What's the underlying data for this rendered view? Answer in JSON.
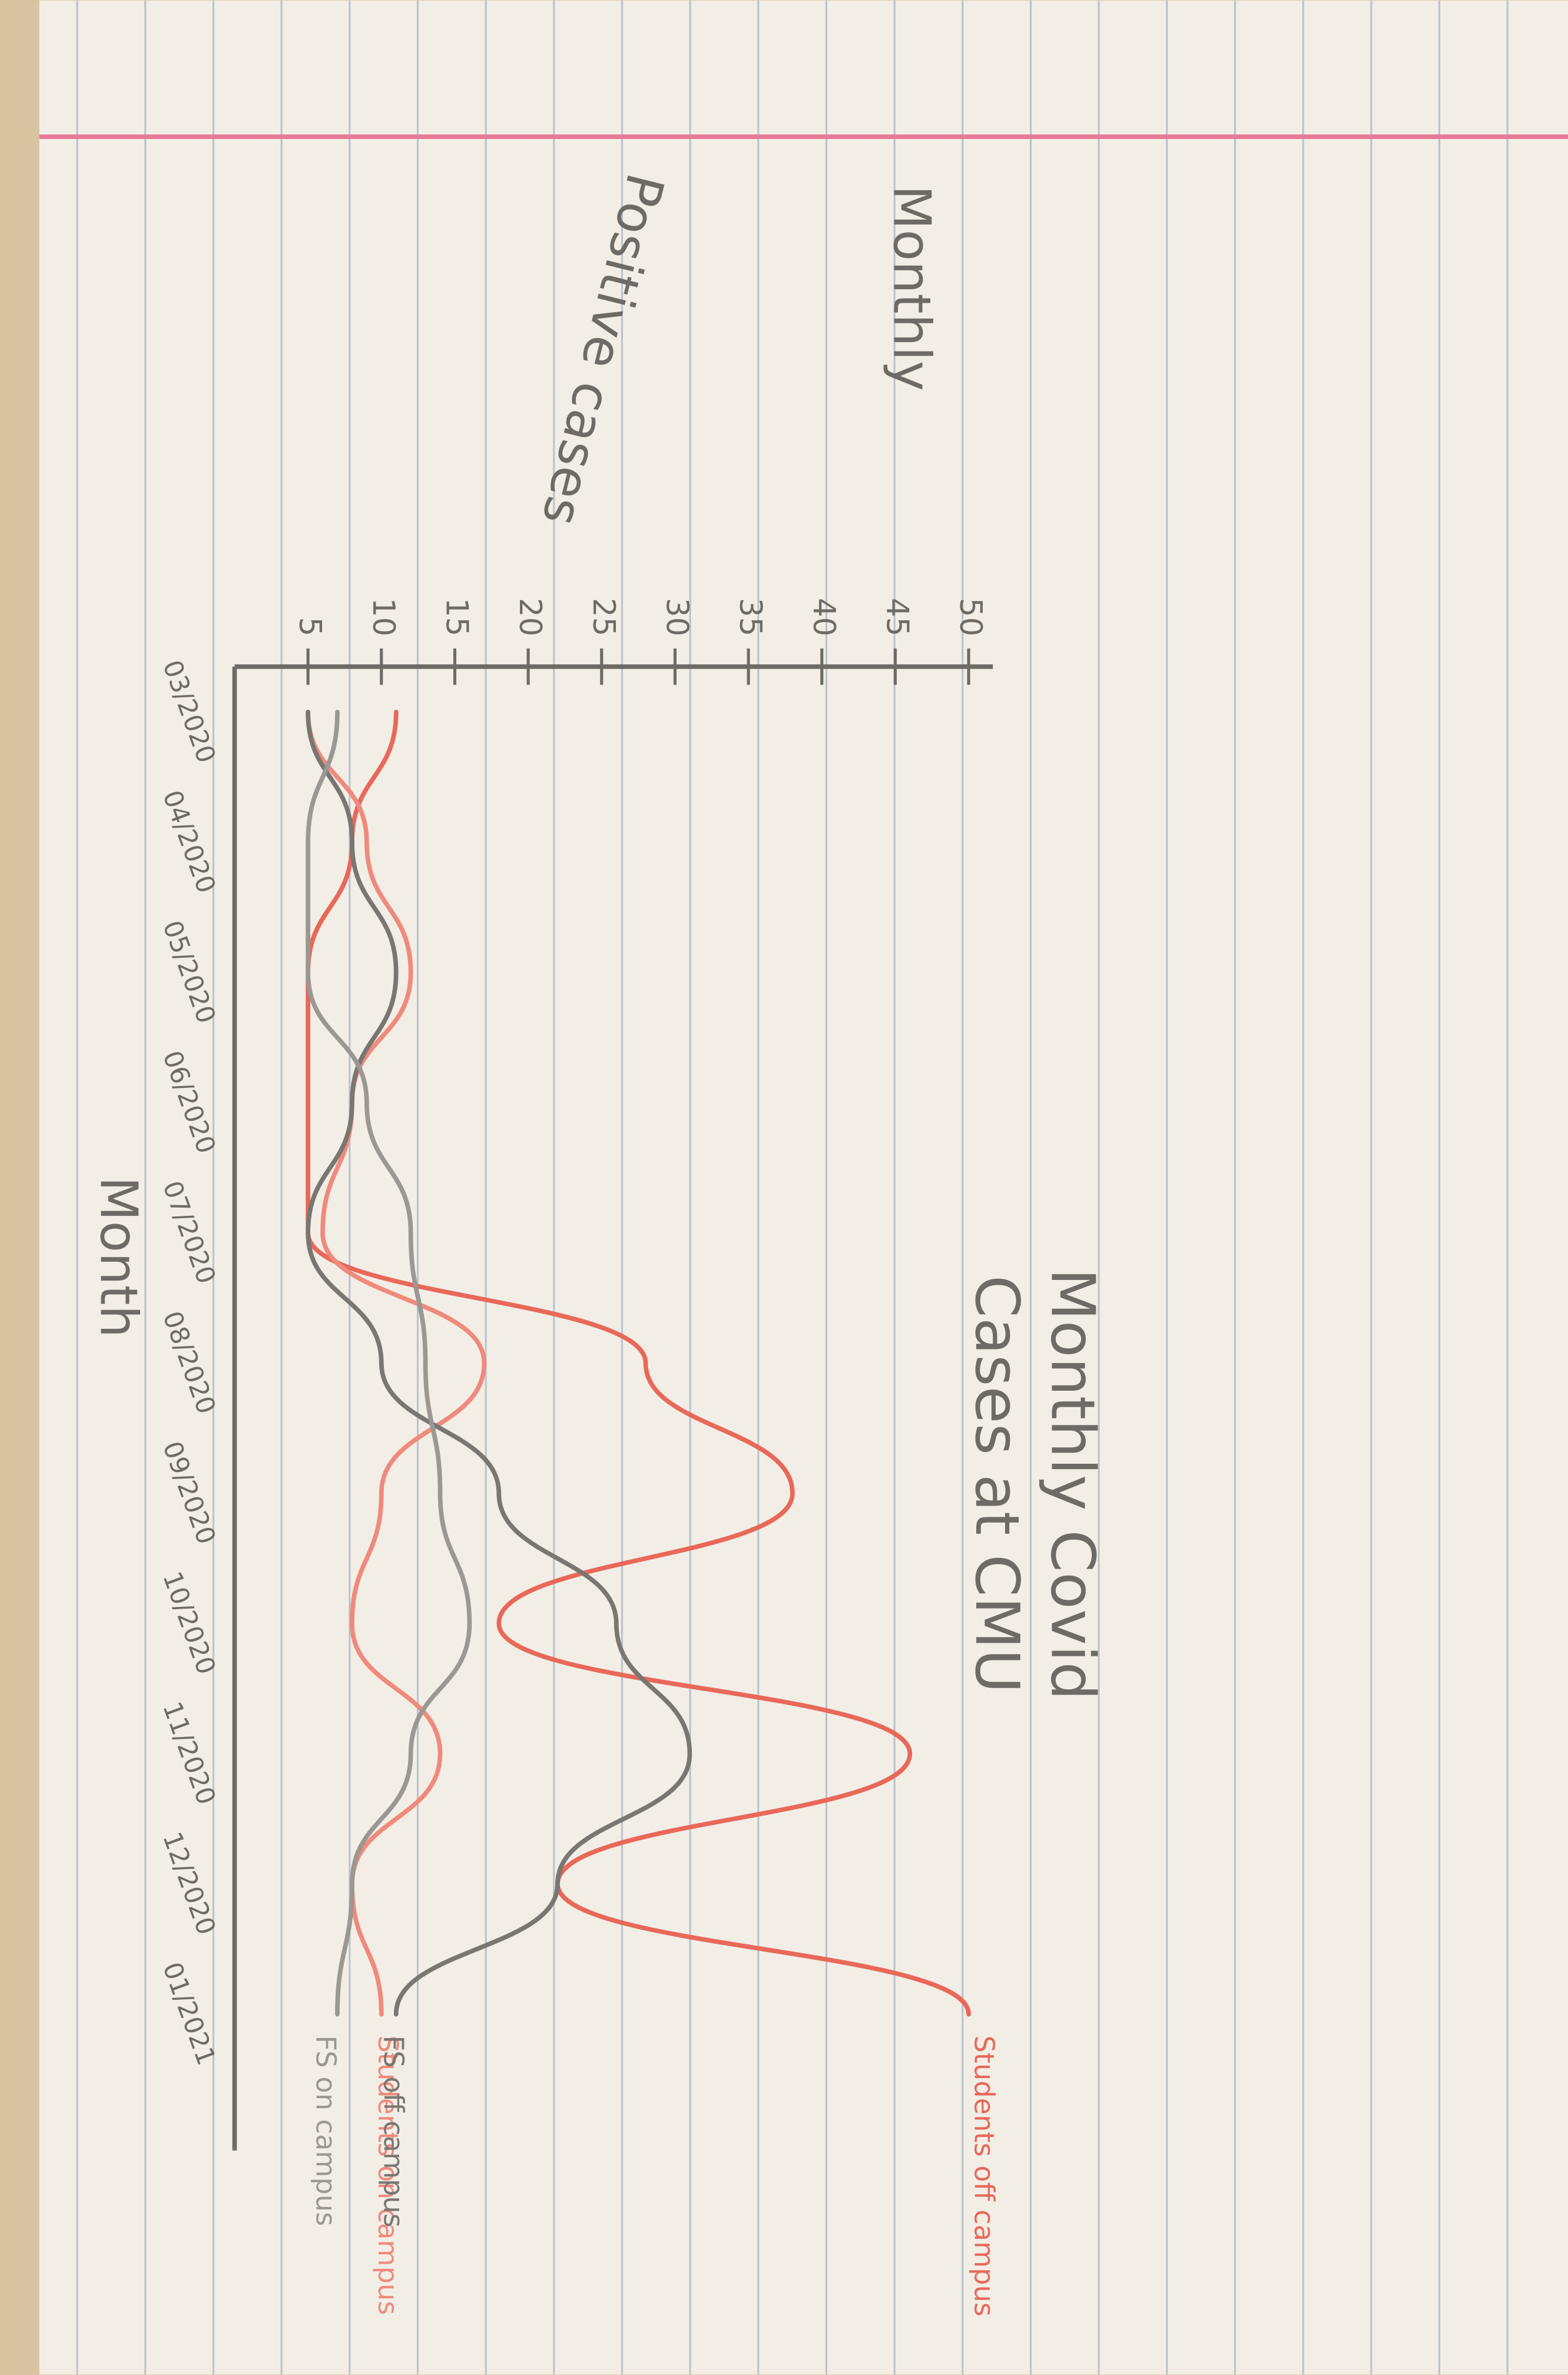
{
  "chart_data": {
    "type": "line",
    "title": [
      "Monthly Covid",
      "Cases at CMU"
    ],
    "y_label": [
      "Monthly",
      "Positive cases"
    ],
    "x_label": "Month",
    "categories": [
      "03/2020",
      "04/2020",
      "05/2020",
      "06/2020",
      "07/2020",
      "08/2020",
      "09/2020",
      "10/2020",
      "11/2020",
      "12/2020",
      "01/2021"
    ],
    "ylim": [
      0,
      50
    ],
    "yticks": [
      5,
      10,
      15,
      20,
      25,
      30,
      35,
      40,
      45,
      50
    ],
    "series": [
      {
        "name": "Students off campus",
        "color": "#e8685a",
        "values": [
          11,
          8,
          5,
          5,
          5,
          28,
          38,
          18,
          46,
          22,
          50
        ]
      },
      {
        "name": "Students on campus",
        "color": "#ef8a7c",
        "values": [
          5,
          9,
          12,
          8,
          6,
          17,
          10,
          8,
          14,
          8,
          10
        ]
      },
      {
        "name": "FS off campus",
        "color": "#7a7672",
        "values": [
          5,
          8,
          11,
          8,
          5,
          10,
          18,
          26,
          31,
          22,
          11
        ]
      },
      {
        "name": "FS on campus",
        "color": "#9b9792",
        "values": [
          7,
          5,
          5,
          9,
          12,
          13,
          14,
          16,
          12,
          8,
          7
        ]
      }
    ]
  }
}
